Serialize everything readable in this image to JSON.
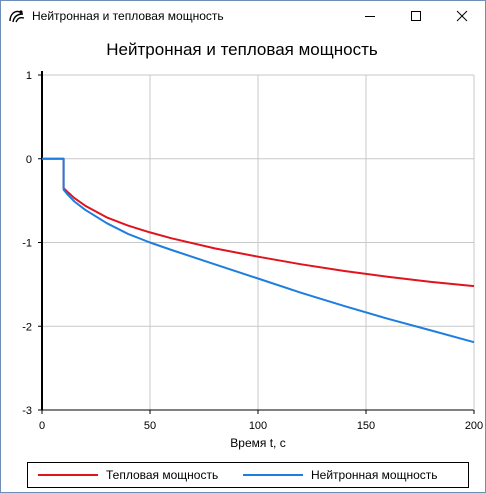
{
  "window": {
    "title": "Нейтронная и тепловая мощность",
    "controls": [
      "minimize",
      "maximize",
      "close"
    ]
  },
  "chart_data": {
    "type": "line",
    "title": "Нейтронная и тепловая мощность",
    "xlabel": "Время t, c",
    "ylabel": "",
    "xlim": [
      0,
      200
    ],
    "ylim": [
      -3,
      1
    ],
    "x_ticks": [
      "0",
      "50",
      "100",
      "150",
      "200"
    ],
    "y_ticks": [
      "1",
      "0",
      "-1",
      "-2",
      "-3"
    ],
    "x_tick_values": [
      0,
      50,
      100,
      150,
      200
    ],
    "y_tick_values": [
      1,
      0,
      -1,
      -2,
      -3
    ],
    "grid": true,
    "legend_position": "bottom",
    "series": [
      {
        "name": "Тепловая мощность",
        "color": "#e0141e",
        "x": [
          0,
          10,
          10,
          12,
          15,
          20,
          30,
          40,
          50,
          60,
          80,
          100,
          120,
          140,
          160,
          180,
          200
        ],
        "y": [
          0,
          0,
          -0.35,
          -0.4,
          -0.47,
          -0.56,
          -0.7,
          -0.8,
          -0.88,
          -0.95,
          -1.07,
          -1.17,
          -1.26,
          -1.34,
          -1.41,
          -1.47,
          -1.52
        ]
      },
      {
        "name": "Нейтронная мощность",
        "color": "#1e7ee0",
        "x": [
          0,
          10,
          10,
          12,
          15,
          20,
          30,
          40,
          50,
          60,
          80,
          100,
          120,
          140,
          160,
          180,
          200
        ],
        "y": [
          0,
          0,
          -0.37,
          -0.43,
          -0.51,
          -0.61,
          -0.77,
          -0.9,
          -1.0,
          -1.09,
          -1.26,
          -1.43,
          -1.6,
          -1.76,
          -1.91,
          -2.05,
          -2.19
        ]
      }
    ]
  }
}
